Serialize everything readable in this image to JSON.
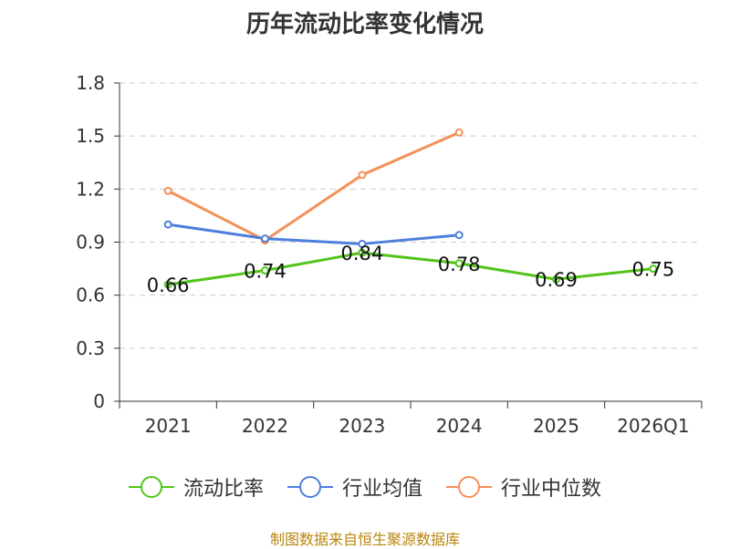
{
  "chart_data": {
    "type": "line",
    "title": "历年流动比率变化情况",
    "categories": [
      "2021",
      "2022",
      "2023",
      "2024",
      "2025",
      "2026Q1"
    ],
    "ylim": [
      0,
      1.8
    ],
    "yticks": [
      "0",
      "0.3",
      "0.6",
      "0.9",
      "1.2",
      "1.5",
      "1.8"
    ],
    "grid": true,
    "legend_position": "bottom",
    "series": [
      {
        "name": "流动比率",
        "color": "#52c41a",
        "values": [
          0.66,
          0.74,
          0.84,
          0.78,
          0.69,
          0.75
        ],
        "labels": [
          "0.66",
          "0.74",
          "0.84",
          "0.78",
          "0.69",
          "0.75"
        ]
      },
      {
        "name": "行业均值",
        "color": "#4e7fdc",
        "values": [
          1.0,
          0.92,
          0.89,
          0.94,
          null,
          null
        ]
      },
      {
        "name": "行业中位数",
        "color": "#f4905a",
        "values": [
          1.19,
          0.91,
          1.28,
          1.52,
          null,
          null
        ]
      }
    ]
  },
  "footer": {
    "source": "制图数据来自恒生聚源数据库"
  }
}
